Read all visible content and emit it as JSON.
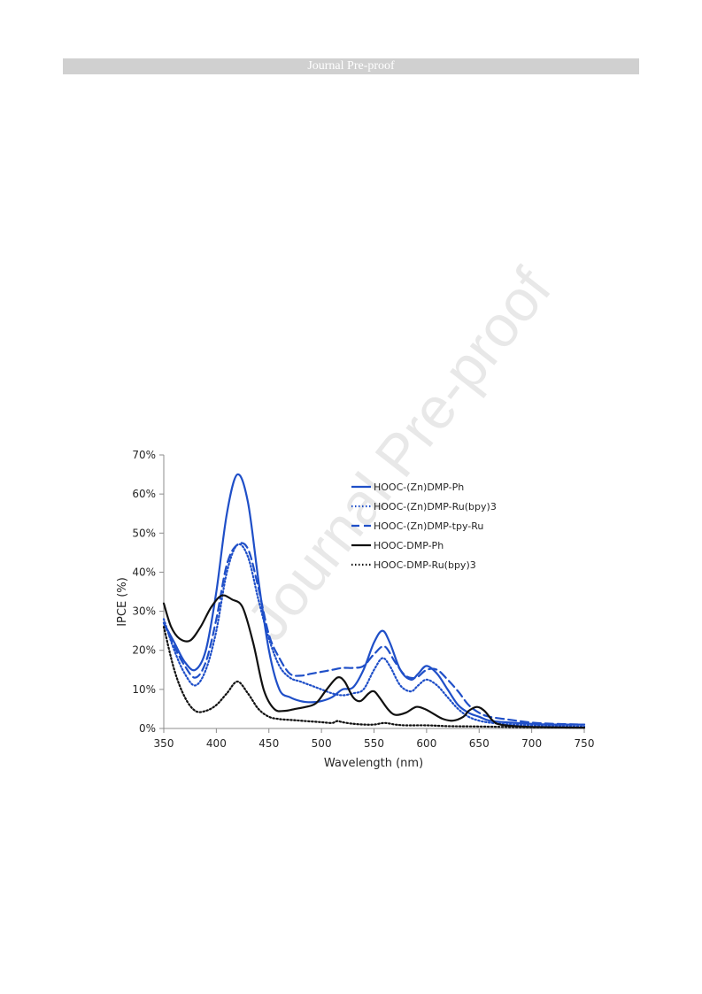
{
  "header": {
    "banner_text": "Journal Pre-proof"
  },
  "watermark": {
    "text": "Journal Pre-proof"
  },
  "chart_data": {
    "type": "line",
    "title": "",
    "xlabel": "Wavelength (nm)",
    "ylabel": "IPCE (%)",
    "xlim": [
      350,
      750
    ],
    "ylim": [
      0,
      70
    ],
    "xticks": [
      "350",
      "400",
      "450",
      "500",
      "550",
      "600",
      "650",
      "700",
      "750"
    ],
    "yticks": [
      "0%",
      "10%",
      "20%",
      "30%",
      "40%",
      "50%",
      "60%",
      "70%"
    ],
    "grid": false,
    "legend_position": "top-right",
    "series": [
      {
        "name": "HOOC-(Zn)DMP-Ph",
        "color": "#1f4fc8",
        "style": "solid",
        "points": [
          [
            350,
            27
          ],
          [
            360,
            22
          ],
          [
            370,
            17
          ],
          [
            380,
            15
          ],
          [
            390,
            20
          ],
          [
            400,
            35
          ],
          [
            410,
            55
          ],
          [
            420,
            65
          ],
          [
            430,
            58
          ],
          [
            440,
            38
          ],
          [
            450,
            20
          ],
          [
            460,
            10
          ],
          [
            470,
            8
          ],
          [
            480,
            7
          ],
          [
            490,
            6.7
          ],
          [
            500,
            7
          ],
          [
            510,
            8
          ],
          [
            520,
            10
          ],
          [
            530,
            10.5
          ],
          [
            540,
            15
          ],
          [
            550,
            22
          ],
          [
            558,
            25
          ],
          [
            565,
            22
          ],
          [
            575,
            15
          ],
          [
            585,
            12.5
          ],
          [
            592,
            14
          ],
          [
            600,
            16
          ],
          [
            610,
            14
          ],
          [
            620,
            10
          ],
          [
            630,
            6
          ],
          [
            640,
            4
          ],
          [
            650,
            3
          ],
          [
            660,
            2
          ],
          [
            680,
            1.5
          ],
          [
            700,
            1.2
          ],
          [
            720,
            1
          ],
          [
            750,
            1
          ]
        ]
      },
      {
        "name": "HOOC-(Zn)DMP-Ru(bpy)3",
        "color": "#1f4fc8",
        "style": "dotted",
        "points": [
          [
            350,
            28
          ],
          [
            360,
            20
          ],
          [
            370,
            14
          ],
          [
            380,
            11
          ],
          [
            390,
            15
          ],
          [
            400,
            25
          ],
          [
            410,
            40
          ],
          [
            420,
            47
          ],
          [
            430,
            44
          ],
          [
            440,
            33
          ],
          [
            450,
            23
          ],
          [
            460,
            16
          ],
          [
            470,
            13
          ],
          [
            480,
            12
          ],
          [
            490,
            11
          ],
          [
            500,
            10
          ],
          [
            510,
            9
          ],
          [
            520,
            8.5
          ],
          [
            530,
            9
          ],
          [
            540,
            10
          ],
          [
            550,
            15
          ],
          [
            558,
            18
          ],
          [
            565,
            16
          ],
          [
            575,
            11
          ],
          [
            585,
            9.5
          ],
          [
            592,
            11
          ],
          [
            600,
            12.5
          ],
          [
            610,
            11
          ],
          [
            620,
            8
          ],
          [
            630,
            5
          ],
          [
            640,
            3
          ],
          [
            650,
            2
          ],
          [
            660,
            1.5
          ],
          [
            680,
            1
          ],
          [
            700,
            0.8
          ],
          [
            720,
            0.6
          ],
          [
            750,
            0.5
          ]
        ]
      },
      {
        "name": "HOOC-(Zn)DMP-tpy-Ru",
        "color": "#1f4fc8",
        "style": "dashed",
        "points": [
          [
            350,
            27
          ],
          [
            360,
            21
          ],
          [
            370,
            16
          ],
          [
            380,
            13
          ],
          [
            390,
            17
          ],
          [
            400,
            28
          ],
          [
            410,
            42
          ],
          [
            420,
            47
          ],
          [
            430,
            46
          ],
          [
            440,
            36
          ],
          [
            450,
            24
          ],
          [
            460,
            18
          ],
          [
            470,
            14
          ],
          [
            480,
            13.5
          ],
          [
            490,
            14
          ],
          [
            500,
            14.5
          ],
          [
            510,
            15
          ],
          [
            520,
            15.5
          ],
          [
            530,
            15.5
          ],
          [
            540,
            16
          ],
          [
            550,
            19
          ],
          [
            560,
            21
          ],
          [
            570,
            17
          ],
          [
            580,
            13.5
          ],
          [
            590,
            13
          ],
          [
            600,
            15
          ],
          [
            610,
            15
          ],
          [
            620,
            12.5
          ],
          [
            630,
            9.5
          ],
          [
            640,
            6
          ],
          [
            650,
            4
          ],
          [
            660,
            3
          ],
          [
            680,
            2.2
          ],
          [
            700,
            1.5
          ],
          [
            720,
            1.2
          ],
          [
            750,
            1
          ]
        ]
      },
      {
        "name": "HOOC-DMP-Ph",
        "color": "#111111",
        "style": "solid",
        "points": [
          [
            350,
            32
          ],
          [
            357,
            26
          ],
          [
            365,
            23
          ],
          [
            375,
            22.5
          ],
          [
            385,
            26
          ],
          [
            395,
            31
          ],
          [
            405,
            34
          ],
          [
            415,
            33
          ],
          [
            425,
            31
          ],
          [
            435,
            22
          ],
          [
            445,
            10
          ],
          [
            455,
            5
          ],
          [
            465,
            4.5
          ],
          [
            475,
            5
          ],
          [
            485,
            5.5
          ],
          [
            495,
            6.5
          ],
          [
            505,
            10
          ],
          [
            515,
            13
          ],
          [
            522,
            12
          ],
          [
            530,
            8
          ],
          [
            537,
            7
          ],
          [
            545,
            9
          ],
          [
            550,
            9.5
          ],
          [
            555,
            8
          ],
          [
            563,
            5
          ],
          [
            570,
            3.5
          ],
          [
            580,
            4
          ],
          [
            590,
            5.5
          ],
          [
            598,
            5
          ],
          [
            605,
            4
          ],
          [
            615,
            2.5
          ],
          [
            625,
            2
          ],
          [
            635,
            3
          ],
          [
            640,
            4.5
          ],
          [
            648,
            5.5
          ],
          [
            655,
            4.5
          ],
          [
            663,
            2
          ],
          [
            670,
            1
          ],
          [
            690,
            0.5
          ],
          [
            720,
            0.3
          ],
          [
            750,
            0.2
          ]
        ]
      },
      {
        "name": "HOOC-DMP-Ru(bpy)3",
        "color": "#111111",
        "style": "dotted",
        "points": [
          [
            350,
            26
          ],
          [
            360,
            15
          ],
          [
            370,
            8
          ],
          [
            380,
            4.5
          ],
          [
            390,
            4.5
          ],
          [
            400,
            6
          ],
          [
            410,
            9
          ],
          [
            420,
            12
          ],
          [
            430,
            9
          ],
          [
            440,
            5
          ],
          [
            450,
            3
          ],
          [
            460,
            2.4
          ],
          [
            470,
            2.2
          ],
          [
            480,
            2
          ],
          [
            490,
            1.8
          ],
          [
            500,
            1.6
          ],
          [
            510,
            1.4
          ],
          [
            515,
            1.9
          ],
          [
            520,
            1.6
          ],
          [
            530,
            1.2
          ],
          [
            540,
            1
          ],
          [
            550,
            1
          ],
          [
            560,
            1.4
          ],
          [
            570,
            1
          ],
          [
            580,
            0.8
          ],
          [
            600,
            0.8
          ],
          [
            620,
            0.6
          ],
          [
            650,
            0.5
          ],
          [
            700,
            0.3
          ],
          [
            750,
            0.2
          ]
        ]
      }
    ]
  }
}
